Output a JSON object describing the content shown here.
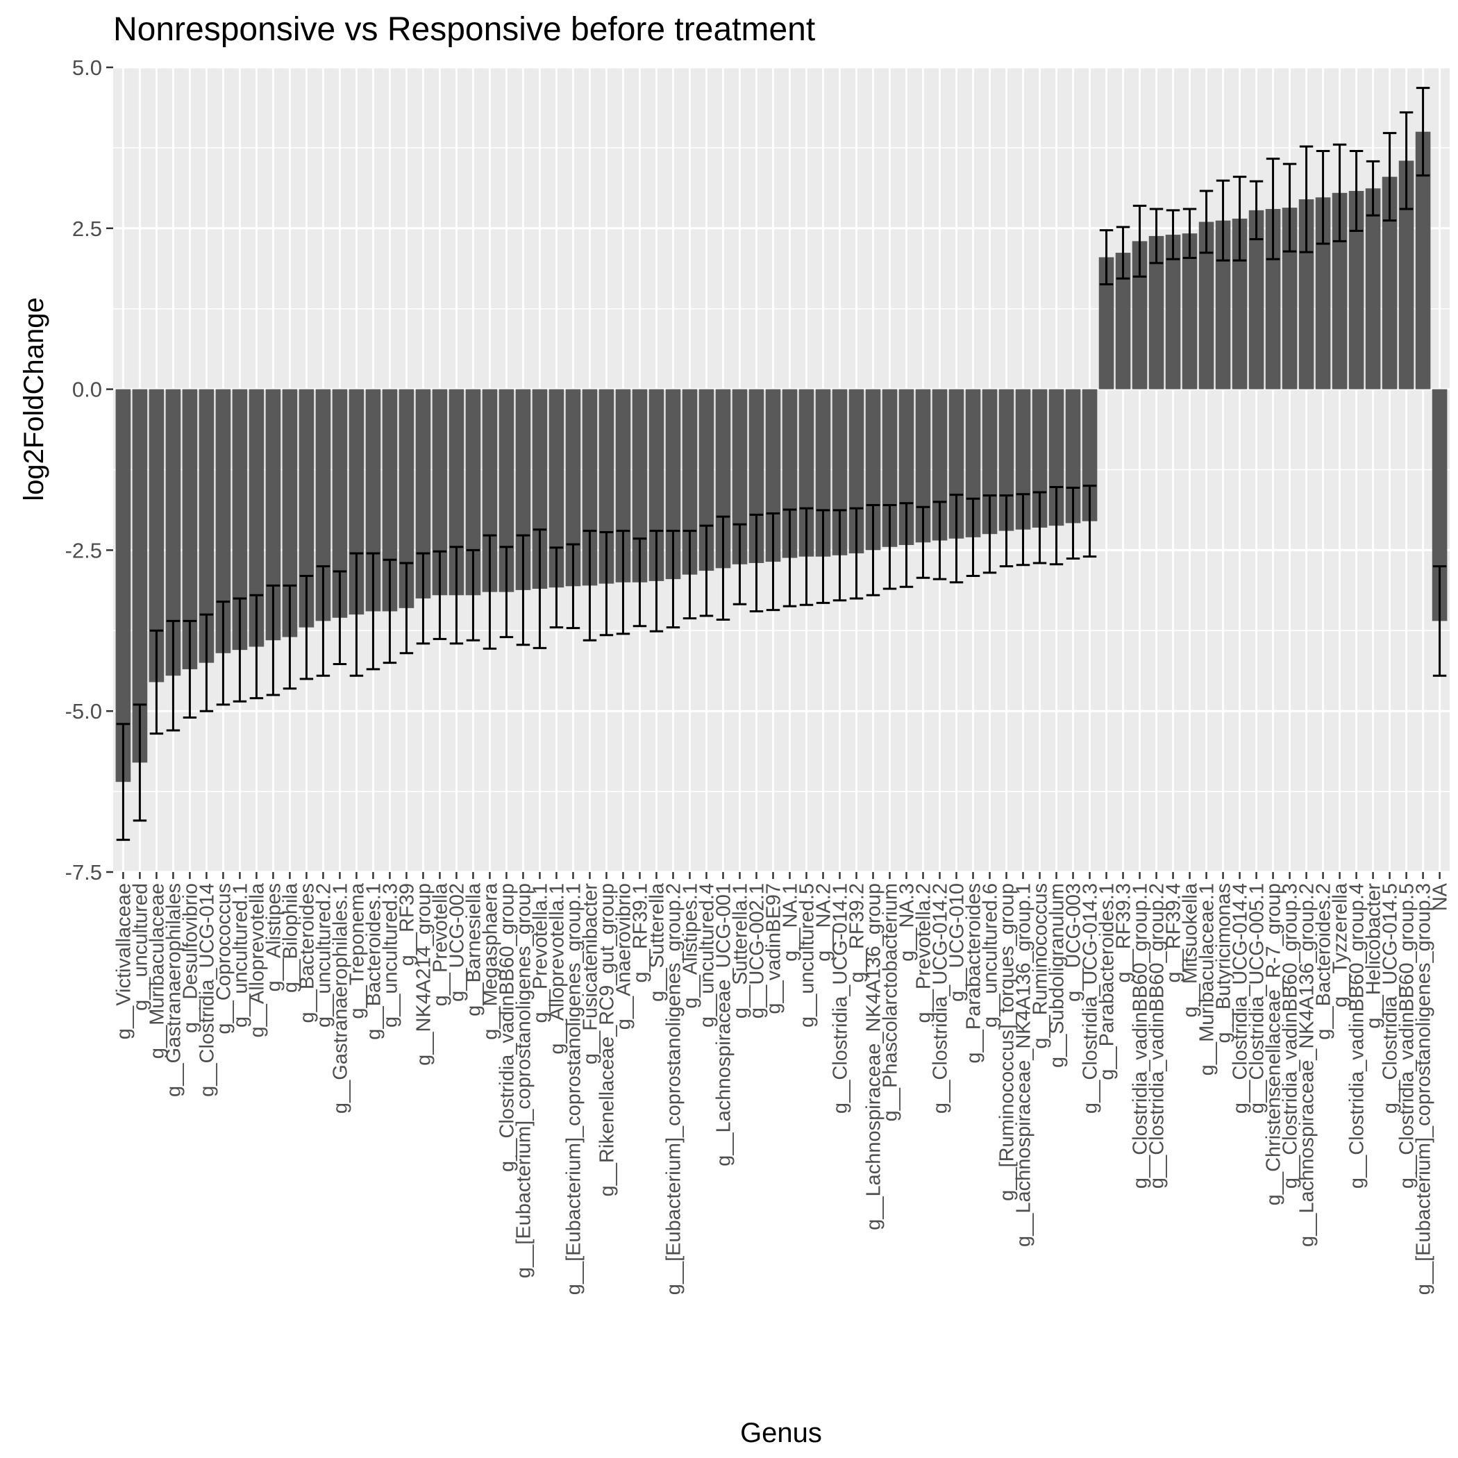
{
  "chart_data": {
    "type": "bar",
    "title": "Nonresponsive vs Responsive before treatment",
    "xlabel": "Genus",
    "ylabel": "log2FoldChange",
    "ylim": [
      -7.5,
      5.0
    ],
    "yticks": [
      "5.0",
      "2.5",
      "0.0",
      "-2.5",
      "-5.0",
      "-7.5"
    ],
    "grid": true,
    "legend": "none",
    "colors": {
      "bar": "#595959",
      "panel": "#ebebeb",
      "grid": "#ffffff",
      "error_bar": "#000000"
    },
    "categories": [
      "g__Victivallaceae",
      "g__uncultured",
      "g__Muribaculaceae",
      "g__Gastranaerophilales",
      "g__Desulfovibrio",
      "g__Clostridia_UCG-014",
      "g__Coprococcus",
      "g__uncultured.1",
      "g__Alloprevotella",
      "g__Alistipes",
      "g__Bilophila",
      "g__Bacteroides",
      "g__uncultured.2",
      "g__Gastranaerophilales.1",
      "g__Treponema",
      "g__Bacteroides.1",
      "g__uncultured.3",
      "g__RF39",
      "g__NK4A214_group",
      "g__Prevotella",
      "g__UCG-002",
      "g__Barnesiella",
      "g__Megasphaera",
      "g__Clostridia_vadinBB60_group",
      "g__[Eubacterium]_coprostanoligenes_group",
      "g__Prevotella.1",
      "g__Alloprevotella.1",
      "g__[Eubacterium]_coprostanoligenes_group.1",
      "g__Fusicatenibacter",
      "g__Rikenellaceae_RC9_gut_group",
      "g__Anaerovibrio",
      "g__RF39.1",
      "g__Sutterella",
      "g__[Eubacterium]_coprostanoligenes_group.2",
      "g__Alistipes.1",
      "g__uncultured.4",
      "g__Lachnospiraceae_UCG-001",
      "g__Sutterella.1",
      "g__UCG-002.1",
      "g__vadinBE97",
      "g__NA.1",
      "g__uncultured.5",
      "g__NA.2",
      "g__Clostridia_UCG-014.1",
      "g__RF39.2",
      "g__Lachnospiraceae_NK4A136_group",
      "g__Phascolarctobacterium",
      "g__NA.3",
      "g__Prevotella.2",
      "g__Clostridia_UCG-014.2",
      "g__UCG-010",
      "g__Parabacteroides",
      "g__uncultured.6",
      "g__[Ruminococcus]_torques_group",
      "g__Lachnospiraceae_NK4A136_group.1",
      "g__Ruminococcus",
      "g__Subdoligranulum",
      "g__UCG-003",
      "g__Clostridia_UCG-014.3",
      "g__Parabacteroides.1",
      "g__RF39.3",
      "g__Clostridia_vadinBB60_group.1",
      "g__Clostridia_vadinBB60_group.2",
      "g__RF39.4",
      "g__Mitsuokella",
      "g__Muribaculaceae.1",
      "g__Butyricimonas",
      "g__Clostridia_UCG-014.4",
      "g__Clostridia_UCG-005.1",
      "g__Christensenellaceae_R-7_group",
      "g__Clostridia_vadinBB60_group.3",
      "g__Lachnospiraceae_NK4A136_group.2",
      "g__Bacteroides.2",
      "g__Tyzzerella",
      "g__Clostridia_vadinBB60_group.4",
      "g__Helicobacter",
      "g__Clostridia_UCG-014.5",
      "g__Clostridia_vadinBB60_group.5",
      "g__[Eubacterium]_coprostanoligenes_group.3",
      "NA"
    ],
    "values": [
      -6.1,
      -5.8,
      -4.55,
      -4.45,
      -4.35,
      -4.25,
      -4.1,
      -4.05,
      -4.0,
      -3.9,
      -3.85,
      -3.7,
      -3.6,
      -3.55,
      -3.5,
      -3.45,
      -3.45,
      -3.4,
      -3.25,
      -3.2,
      -3.2,
      -3.2,
      -3.15,
      -3.15,
      -3.12,
      -3.1,
      -3.08,
      -3.06,
      -3.05,
      -3.02,
      -3.0,
      -3.0,
      -2.98,
      -2.95,
      -2.88,
      -2.82,
      -2.78,
      -2.72,
      -2.7,
      -2.68,
      -2.62,
      -2.6,
      -2.6,
      -2.58,
      -2.55,
      -2.5,
      -2.45,
      -2.42,
      -2.38,
      -2.35,
      -2.32,
      -2.3,
      -2.25,
      -2.2,
      -2.18,
      -2.15,
      -2.12,
      -2.08,
      -2.05,
      2.05,
      2.12,
      2.3,
      2.38,
      2.4,
      2.42,
      2.6,
      2.62,
      2.65,
      2.78,
      2.8,
      2.82,
      2.95,
      2.98,
      3.05,
      3.08,
      3.12,
      3.3,
      3.55,
      4.0,
      -3.6
    ],
    "error": [
      0.9,
      0.9,
      0.8,
      0.85,
      0.75,
      0.75,
      0.8,
      0.8,
      0.8,
      0.85,
      0.8,
      0.8,
      0.85,
      0.72,
      0.95,
      0.9,
      0.8,
      0.7,
      0.7,
      0.68,
      0.75,
      0.7,
      0.88,
      0.7,
      0.85,
      0.92,
      0.62,
      0.65,
      0.85,
      0.8,
      0.8,
      0.68,
      0.78,
      0.75,
      0.68,
      0.7,
      0.8,
      0.62,
      0.75,
      0.75,
      0.75,
      0.75,
      0.72,
      0.7,
      0.7,
      0.7,
      0.65,
      0.65,
      0.55,
      0.6,
      0.68,
      0.6,
      0.6,
      0.55,
      0.55,
      0.55,
      0.6,
      0.55,
      0.55,
      0.42,
      0.4,
      0.55,
      0.42,
      0.38,
      0.38,
      0.48,
      0.62,
      0.65,
      0.45,
      0.78,
      0.68,
      0.82,
      0.72,
      0.75,
      0.62,
      0.42,
      0.68,
      0.75,
      0.68,
      0.85
    ]
  }
}
